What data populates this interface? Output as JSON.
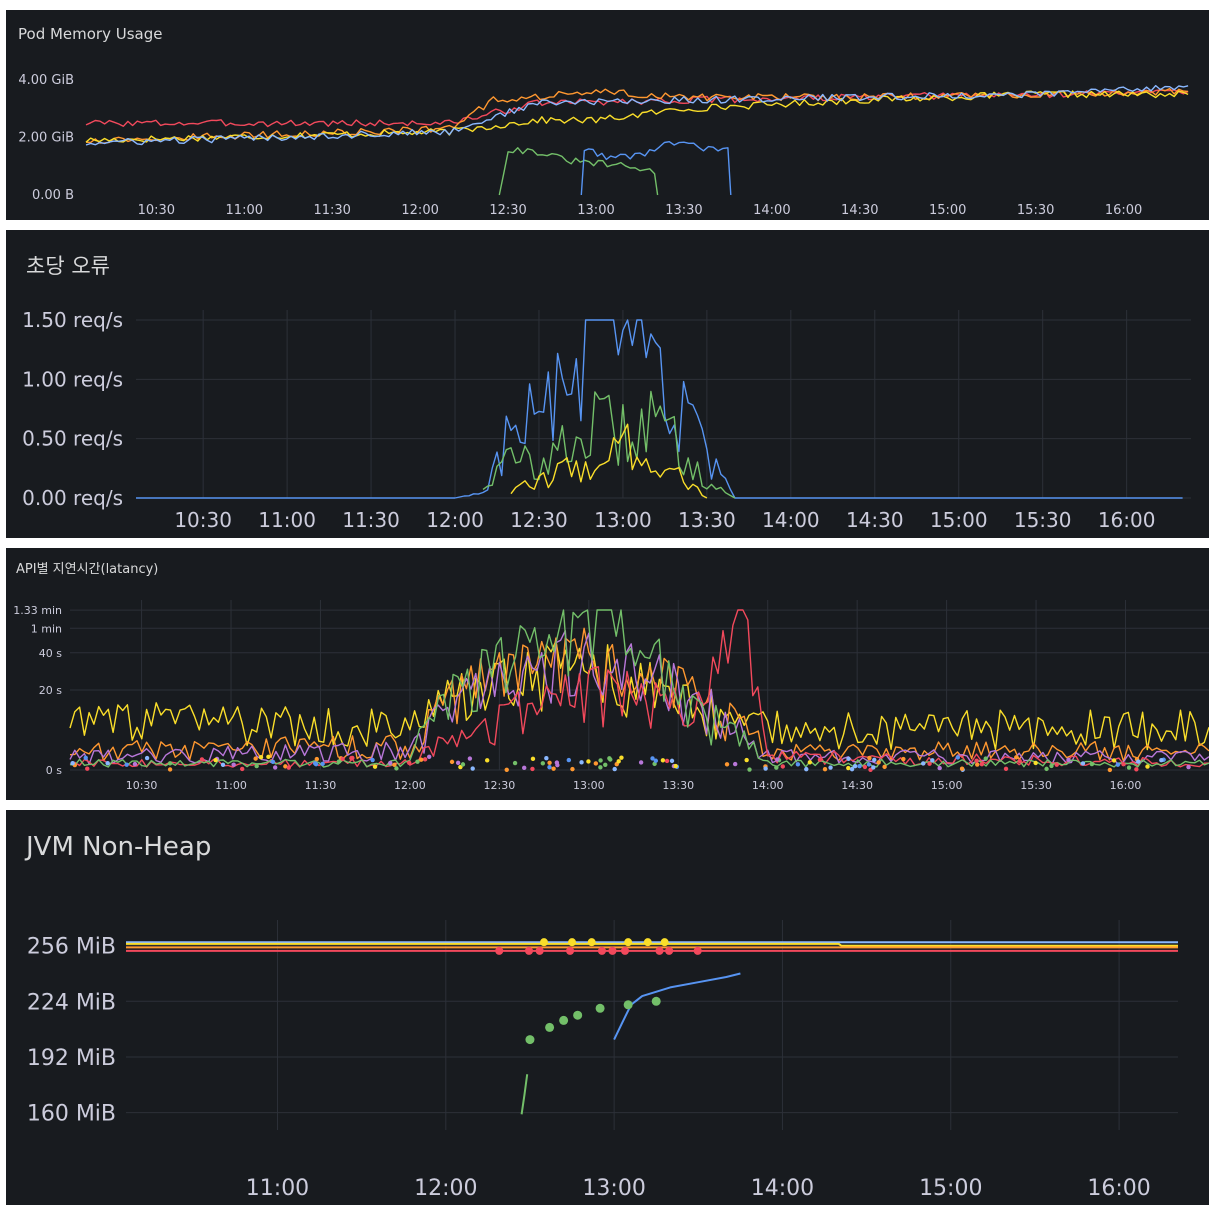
{
  "panels": [
    {
      "title": "Pod Memory Usage"
    },
    {
      "title": "초당 오류"
    },
    {
      "title": "API별 지연시간(latancy)"
    },
    {
      "title": "JVM Non-Heap"
    }
  ],
  "colors": {
    "panel_bg": "#181b1f",
    "grid": "#2c3038",
    "text": "#ccccdc",
    "green": "#73bf69",
    "yellow": "#fade2a",
    "blue": "#5794f2",
    "orange": "#ff9830",
    "red": "#f2495c",
    "purple": "#b877d9",
    "light_blue": "#8ab8ff"
  },
  "chart_data": [
    {
      "type": "line",
      "title": "Pod Memory Usage",
      "x_ticks": [
        "10:30",
        "11:00",
        "11:30",
        "12:00",
        "12:30",
        "13:00",
        "13:30",
        "14:00",
        "14:30",
        "15:00",
        "15:30",
        "16:00"
      ],
      "y_ticks": [
        "4.00 GiB",
        "2.00 GiB",
        "0.00 B"
      ],
      "ylim": [
        0,
        4
      ],
      "xlim": [
        "10:06",
        "16:23"
      ],
      "grid": false,
      "series": [
        {
          "color": "red",
          "x": [
            "10:06",
            "12:10",
            "12:40",
            "13:30",
            "14:30",
            "15:30",
            "16:22"
          ],
          "y": [
            2.5,
            2.5,
            3.2,
            3.3,
            3.4,
            3.5,
            3.6
          ]
        },
        {
          "color": "orange",
          "x": [
            "10:06",
            "12:10",
            "12:25",
            "13:00",
            "13:30",
            "14:30",
            "15:30",
            "16:22"
          ],
          "y": [
            1.9,
            2.3,
            3.3,
            3.6,
            3.4,
            3.4,
            3.5,
            3.6
          ]
        },
        {
          "color": "yellow",
          "x": [
            "10:06",
            "12:10",
            "12:40",
            "13:00",
            "13:30",
            "14:30",
            "15:30",
            "16:22"
          ],
          "y": [
            1.9,
            2.2,
            2.6,
            2.6,
            3.0,
            3.3,
            3.5,
            3.5
          ]
        },
        {
          "color": "light_blue",
          "x": [
            "10:06",
            "12:10",
            "12:40",
            "13:30",
            "14:30",
            "15:30",
            "16:22"
          ],
          "y": [
            1.8,
            2.2,
            3.2,
            3.3,
            3.4,
            3.5,
            3.8
          ]
        },
        {
          "color": "green",
          "x": [
            "12:27",
            "12:30",
            "12:40",
            "12:50",
            "13:10",
            "13:20",
            "13:21"
          ],
          "y": [
            0,
            1.6,
            1.5,
            1.2,
            1.0,
            0.8,
            0
          ]
        },
        {
          "color": "blue",
          "x": [
            "12:55",
            "12:56",
            "13:05",
            "13:15",
            "13:25",
            "13:40",
            "13:45",
            "13:46"
          ],
          "y": [
            0,
            1.6,
            1.3,
            1.4,
            1.8,
            1.6,
            1.6,
            0
          ]
        }
      ]
    },
    {
      "type": "line",
      "title": "초당 오류",
      "x_ticks": [
        "10:30",
        "11:00",
        "11:30",
        "12:00",
        "12:30",
        "13:00",
        "13:30",
        "14:00",
        "14:30",
        "15:00",
        "15:30",
        "16:00"
      ],
      "y_ticks": [
        "1.50 req/s",
        "1.00 req/s",
        "0.50 req/s",
        "0.00 req/s"
      ],
      "ylim": [
        0,
        1.5
      ],
      "xlim": [
        "10:06",
        "16:23"
      ],
      "grid": true,
      "series": [
        {
          "color": "blue",
          "x": [
            "10:06",
            "12:00",
            "12:10",
            "12:20",
            "12:30",
            "12:40",
            "12:50",
            "13:00",
            "13:10",
            "13:20",
            "13:30",
            "13:40",
            "16:20"
          ],
          "y": [
            0,
            0,
            0.05,
            0.6,
            0.75,
            0.9,
            1.45,
            1.1,
            1.25,
            0.75,
            0.35,
            0,
            0
          ]
        },
        {
          "color": "green",
          "x": [
            "12:10",
            "12:20",
            "12:30",
            "12:40",
            "12:50",
            "13:00",
            "13:10",
            "13:20",
            "13:30",
            "13:40"
          ],
          "y": [
            0.1,
            0.35,
            0.3,
            0.45,
            0.65,
            0.55,
            0.7,
            0.45,
            0.15,
            0
          ]
        },
        {
          "color": "yellow",
          "x": [
            "12:20",
            "12:30",
            "12:40",
            "12:50",
            "13:00",
            "13:10",
            "13:20",
            "13:30"
          ],
          "y": [
            0.05,
            0.15,
            0.25,
            0.3,
            0.45,
            0.4,
            0.2,
            0
          ]
        }
      ]
    },
    {
      "type": "line",
      "title": "API별 지연시간(latancy)",
      "x_ticks": [
        "10:30",
        "11:00",
        "11:30",
        "12:00",
        "12:30",
        "13:00",
        "13:30",
        "14:00",
        "14:30",
        "15:00",
        "15:30",
        "16:00"
      ],
      "y_ticks": [
        "1.33 min",
        "1 min",
        "40 s",
        "20 s",
        "0 s"
      ],
      "ylim": [
        0,
        80
      ],
      "y_scale": "symlog",
      "xlim": [
        "10:06",
        "16:28"
      ],
      "grid": true,
      "series": [
        {
          "color": "yellow",
          "x": [
            "10:06",
            "12:00",
            "12:30",
            "13:00",
            "13:30",
            "14:00",
            "16:28"
          ],
          "y": [
            10,
            8,
            25,
            35,
            15,
            8,
            8
          ]
        },
        {
          "color": "orange",
          "x": [
            "10:06",
            "12:00",
            "12:30",
            "13:00",
            "13:30",
            "14:00",
            "16:28"
          ],
          "y": [
            3,
            4,
            30,
            40,
            20,
            3,
            3
          ]
        },
        {
          "color": "purple",
          "x": [
            "10:06",
            "12:00",
            "12:30",
            "13:00",
            "13:30",
            "14:00",
            "16:28"
          ],
          "y": [
            2,
            3,
            25,
            45,
            20,
            2,
            2
          ]
        },
        {
          "color": "red",
          "x": [
            "10:06",
            "12:00",
            "13:00",
            "13:40",
            "13:50",
            "14:00",
            "16:28"
          ],
          "y": [
            1,
            1,
            20,
            15,
            70,
            2,
            1
          ]
        },
        {
          "color": "green",
          "x": [
            "10:06",
            "12:00",
            "13:06",
            "13:30",
            "14:00",
            "16:28"
          ],
          "y": [
            1,
            1,
            79,
            15,
            1,
            1
          ]
        }
      ]
    },
    {
      "type": "line",
      "title": "JVM Non-Heap",
      "x_ticks": [
        "11:00",
        "12:00",
        "13:00",
        "14:00",
        "15:00",
        "16:00"
      ],
      "y_ticks": [
        "256 MiB",
        "224 MiB",
        "192 MiB",
        "160 MiB"
      ],
      "ylim": [
        150,
        265
      ],
      "xlim": [
        "10:06",
        "16:21"
      ],
      "grid": true,
      "series": [
        {
          "color": "light_blue",
          "x": [
            "10:06",
            "16:21"
          ],
          "y": [
            258,
            258
          ]
        },
        {
          "color": "yellow",
          "x": [
            "10:06",
            "14:20",
            "14:21",
            "16:21"
          ],
          "y": [
            257,
            257,
            256,
            256
          ]
        },
        {
          "color": "orange",
          "x": [
            "10:06",
            "16:21"
          ],
          "y": [
            255,
            255
          ]
        },
        {
          "color": "red",
          "x": [
            "10:06",
            "16:21"
          ],
          "y": [
            253,
            253
          ]
        },
        {
          "color": "green",
          "x": [
            "12:27",
            "12:28",
            "12:29"
          ],
          "y": [
            159,
            170,
            182
          ]
        },
        {
          "color": "blue",
          "x": [
            "13:00",
            "13:03",
            "13:06",
            "13:10",
            "13:20",
            "13:30",
            "13:40",
            "13:45"
          ],
          "y": [
            202,
            212,
            222,
            227,
            232,
            235,
            238,
            240
          ]
        }
      ]
    }
  ]
}
